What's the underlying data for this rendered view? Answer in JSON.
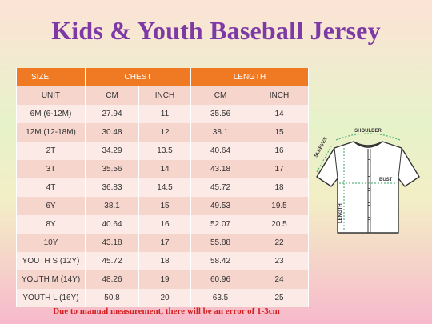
{
  "title": "Kids & Youth Baseball Jersey",
  "table": {
    "header": {
      "size": "SIZE",
      "chest": "CHEST",
      "length": "LENGTH"
    },
    "units": [
      "UNIT",
      "CM",
      "INCH",
      "CM",
      "INCH"
    ],
    "rows": [
      [
        "6M (6-12M)",
        "27.94",
        "11",
        "35.56",
        "14"
      ],
      [
        "12M (12-18M)",
        "30.48",
        "12",
        "38.1",
        "15"
      ],
      [
        "2T",
        "34.29",
        "13.5",
        "40.64",
        "16"
      ],
      [
        "3T",
        "35.56",
        "14",
        "43.18",
        "17"
      ],
      [
        "4T",
        "36.83",
        "14.5",
        "45.72",
        "18"
      ],
      [
        "6Y",
        "38.1",
        "15",
        "49.53",
        "19.5"
      ],
      [
        "8Y",
        "40.64",
        "16",
        "52.07",
        "20.5"
      ],
      [
        "10Y",
        "43.18",
        "17",
        "55.88",
        "22"
      ],
      [
        "YOUTH S (12Y)",
        "45.72",
        "18",
        "58.42",
        "23"
      ],
      [
        "YOUTH M (14Y)",
        "48.26",
        "19",
        "60.96",
        "24"
      ],
      [
        "YOUTH L (16Y)",
        "50.8",
        "20",
        "63.5",
        "25"
      ]
    ]
  },
  "jersey_labels": {
    "shoulder": "SHOULDER",
    "sleeves": "SLEEVES",
    "bust": "BUST",
    "length": "LENGTH"
  },
  "note": "Due to manual measurement, there will be an error of 1-3cm",
  "colors": {
    "title": "#7d3aa6",
    "header": "#f07a24",
    "row_odd": "#f6d5cd",
    "row_even": "#fbeae6",
    "note": "#d42020"
  }
}
